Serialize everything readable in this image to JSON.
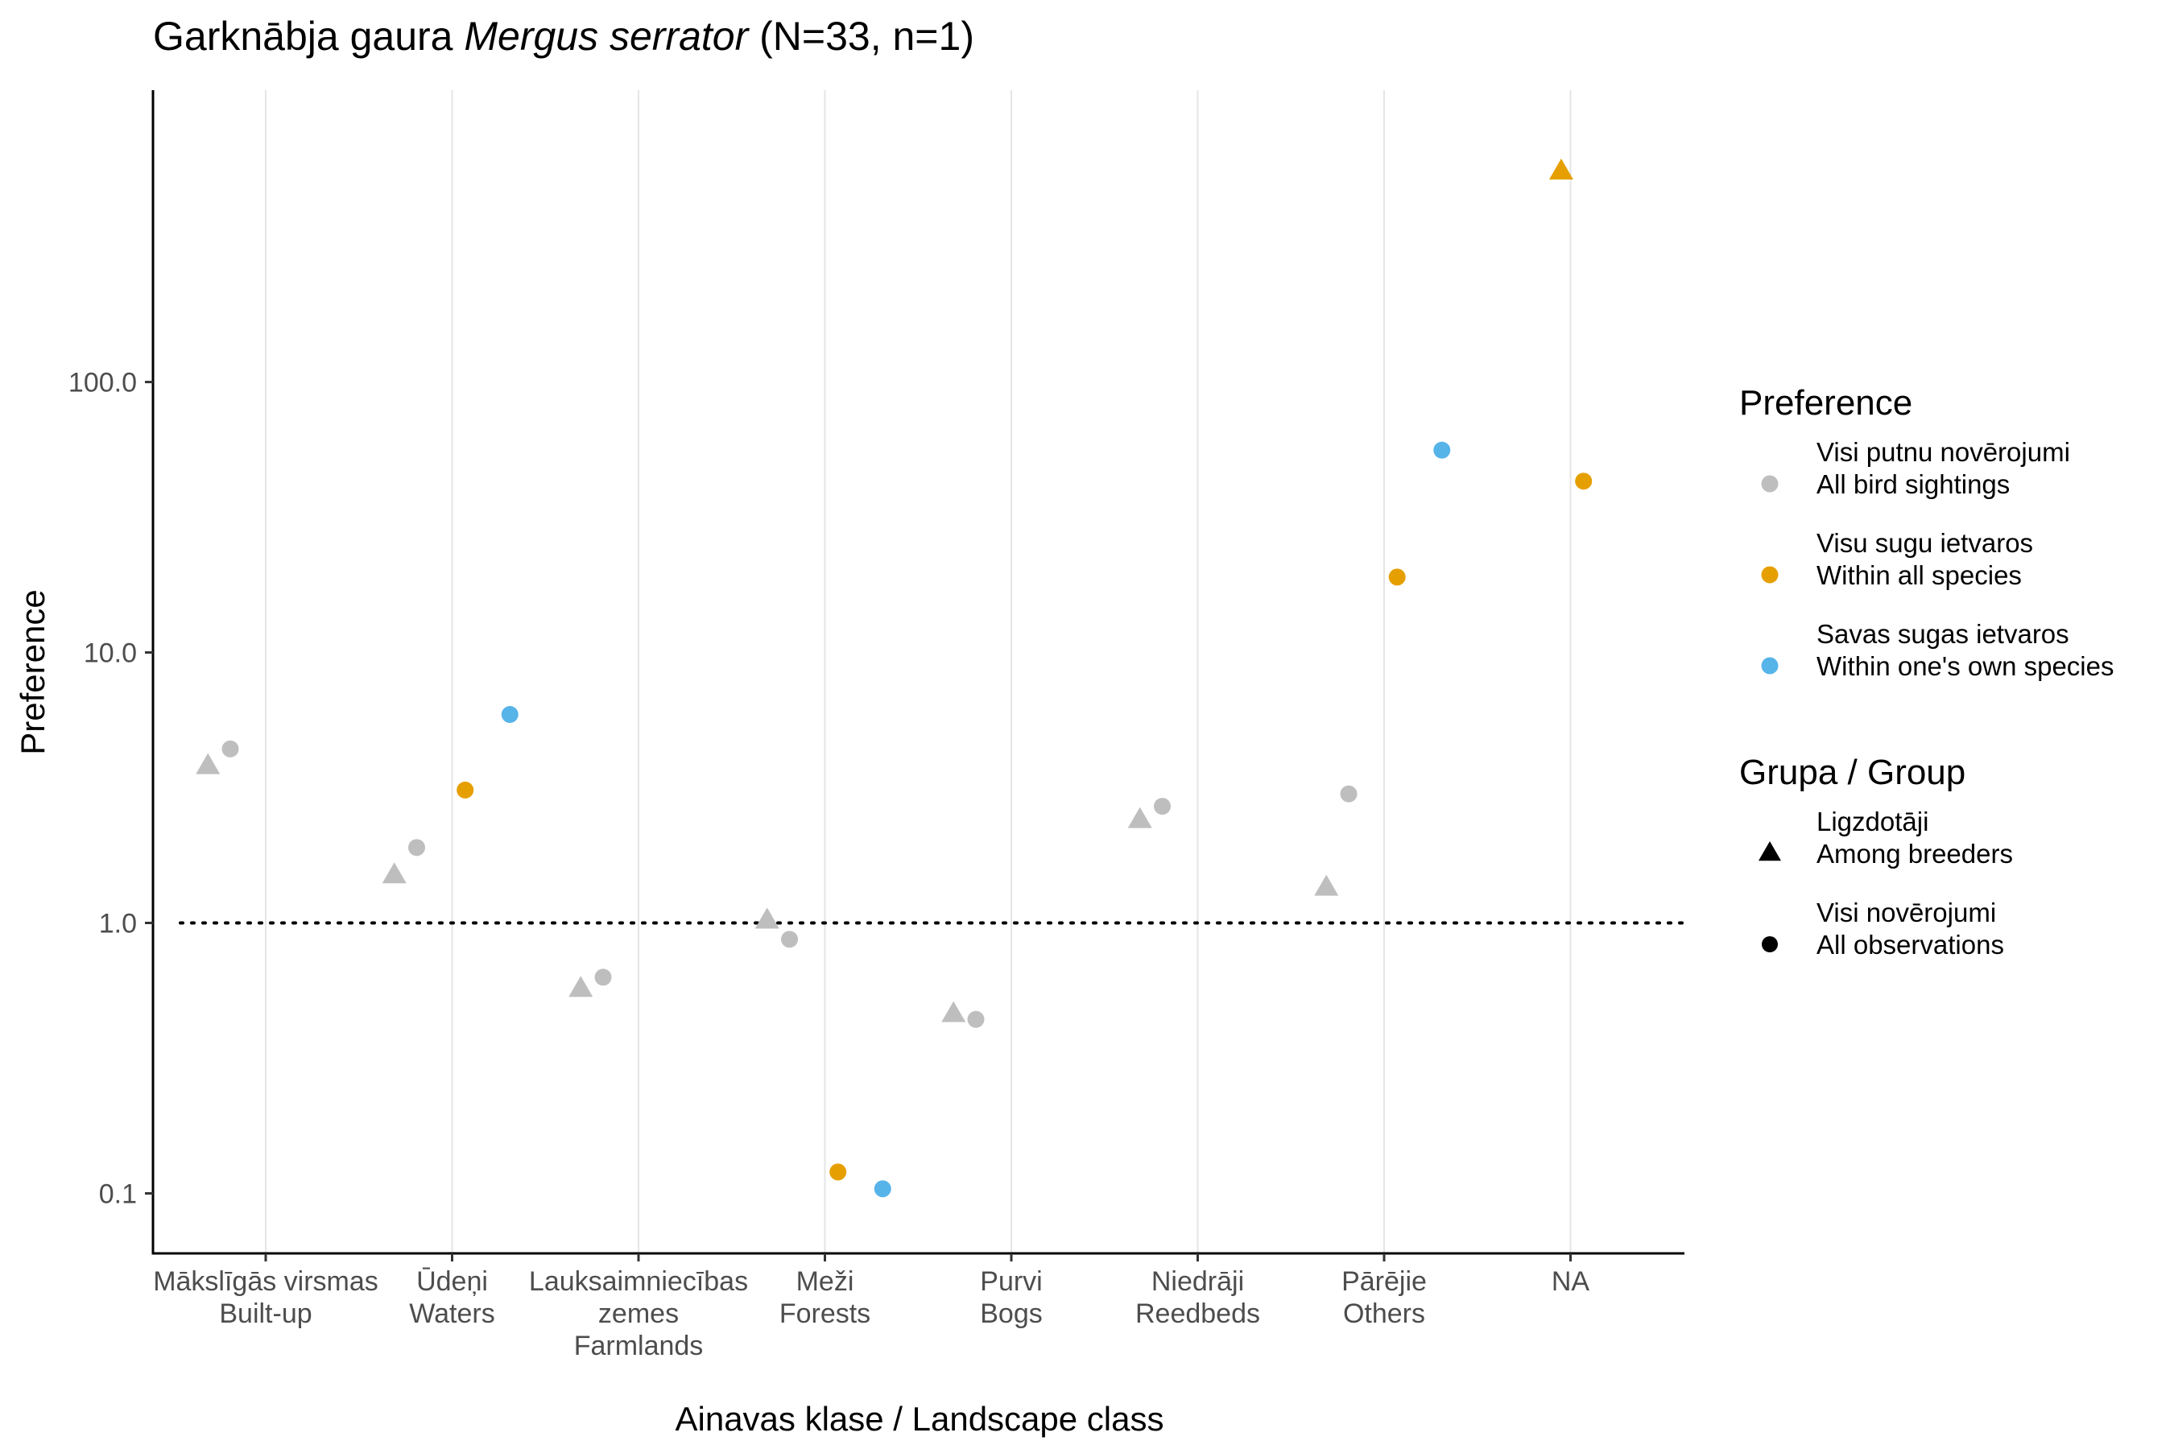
{
  "chart_data": {
    "type": "scatter",
    "title_parts": [
      {
        "text": "Garknābja gaura ",
        "italic": false
      },
      {
        "text": "Mergus serrator",
        "italic": true
      },
      {
        "text": " (N=33, n=1)",
        "italic": false
      }
    ],
    "xlabel": "Ainavas klase / Landscape class",
    "ylabel": "Preference",
    "y_scale": "log10",
    "ylim": [
      0.06,
      1200
    ],
    "y_ticks": [
      {
        "value": 0.1,
        "label": "0.1"
      },
      {
        "value": 1,
        "label": "1.0"
      },
      {
        "value": 10,
        "label": "10.0"
      },
      {
        "value": 100,
        "label": "100.0"
      }
    ],
    "reference_line": {
      "value": 1,
      "style": "dotted"
    },
    "grid": {
      "vertical": true,
      "horizontal": false
    },
    "categories": [
      {
        "lines": [
          "Mākslīgās virsmas",
          "Built-up"
        ]
      },
      {
        "lines": [
          "Ūdeņi",
          "Waters"
        ]
      },
      {
        "lines": [
          "Lauksaimniecības",
          "zemes",
          "Farmlands"
        ]
      },
      {
        "lines": [
          "Meži",
          "Forests"
        ]
      },
      {
        "lines": [
          "Purvi",
          "Bogs"
        ]
      },
      {
        "lines": [
          "Niedrāji",
          "Reedbeds"
        ]
      },
      {
        "lines": [
          "Pārējie",
          "Others"
        ]
      },
      {
        "lines": [
          "NA"
        ]
      }
    ],
    "legend": {
      "position": "right",
      "preference": {
        "title": "Preference",
        "items": [
          {
            "key": "all_birds",
            "lines": [
              "Visi putnu novērojumi",
              "All bird sightings"
            ],
            "color": "#BEBEBE"
          },
          {
            "key": "all_species",
            "lines": [
              "Visu sugu ietvaros",
              "Within all species"
            ],
            "color": "#E69F00"
          },
          {
            "key": "own_species",
            "lines": [
              "Savas sugas ietvaros",
              "Within one's own species"
            ],
            "color": "#56B4E9"
          }
        ]
      },
      "group": {
        "title": "Grupa / Group",
        "items": [
          {
            "key": "breeders",
            "shape": "triangle",
            "lines": [
              "Ligzdotāji",
              "Among breeders"
            ]
          },
          {
            "key": "all_obs",
            "shape": "circle",
            "lines": [
              "Visi novērojumi",
              "All observations"
            ]
          }
        ]
      }
    },
    "points": [
      {
        "category": 0,
        "preference": "all_birds",
        "group": "breeders",
        "y": 3.8,
        "x_offset": -0.31
      },
      {
        "category": 0,
        "preference": "all_birds",
        "group": "all_obs",
        "y": 4.4,
        "x_offset": -0.19
      },
      {
        "category": 1,
        "preference": "all_birds",
        "group": "breeders",
        "y": 1.5,
        "x_offset": -0.31
      },
      {
        "category": 1,
        "preference": "all_birds",
        "group": "all_obs",
        "y": 1.9,
        "x_offset": -0.19
      },
      {
        "category": 1,
        "preference": "all_species",
        "group": "all_obs",
        "y": 3.1,
        "x_offset": 0.07
      },
      {
        "category": 1,
        "preference": "own_species",
        "group": "all_obs",
        "y": 5.9,
        "x_offset": 0.31
      },
      {
        "category": 2,
        "preference": "all_birds",
        "group": "breeders",
        "y": 0.57,
        "x_offset": -0.31
      },
      {
        "category": 2,
        "preference": "all_birds",
        "group": "all_obs",
        "y": 0.63,
        "x_offset": -0.19
      },
      {
        "category": 3,
        "preference": "all_birds",
        "group": "breeders",
        "y": 1.02,
        "x_offset": -0.31
      },
      {
        "category": 3,
        "preference": "all_birds",
        "group": "all_obs",
        "y": 0.87,
        "x_offset": -0.19
      },
      {
        "category": 3,
        "preference": "all_species",
        "group": "all_obs",
        "y": 0.12,
        "x_offset": 0.07
      },
      {
        "category": 3,
        "preference": "own_species",
        "group": "all_obs",
        "y": 0.104,
        "x_offset": 0.31
      },
      {
        "category": 4,
        "preference": "all_birds",
        "group": "breeders",
        "y": 0.46,
        "x_offset": -0.31
      },
      {
        "category": 4,
        "preference": "all_birds",
        "group": "all_obs",
        "y": 0.44,
        "x_offset": -0.19
      },
      {
        "category": 5,
        "preference": "all_birds",
        "group": "breeders",
        "y": 2.4,
        "x_offset": -0.31
      },
      {
        "category": 5,
        "preference": "all_birds",
        "group": "all_obs",
        "y": 2.7,
        "x_offset": -0.19
      },
      {
        "category": 6,
        "preference": "all_birds",
        "group": "breeders",
        "y": 1.35,
        "x_offset": -0.31
      },
      {
        "category": 6,
        "preference": "all_birds",
        "group": "all_obs",
        "y": 3.0,
        "x_offset": -0.19
      },
      {
        "category": 6,
        "preference": "all_species",
        "group": "all_obs",
        "y": 19,
        "x_offset": 0.07
      },
      {
        "category": 6,
        "preference": "own_species",
        "group": "all_obs",
        "y": 56,
        "x_offset": 0.31
      },
      {
        "category": 7,
        "preference": "all_species",
        "group": "breeders",
        "y": 600,
        "x_offset": -0.05
      },
      {
        "category": 7,
        "preference": "all_species",
        "group": "all_obs",
        "y": 43,
        "x_offset": 0.07
      }
    ]
  }
}
